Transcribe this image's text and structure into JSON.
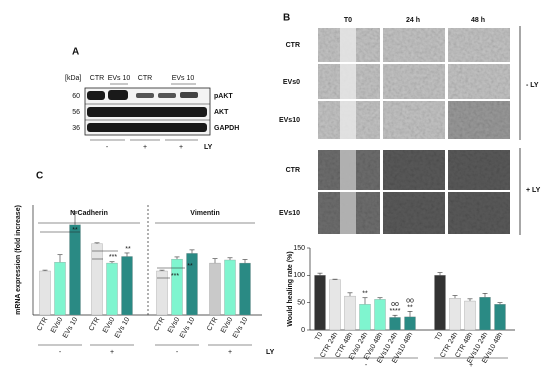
{
  "panel_a": {
    "label": "A",
    "kda_header": "[kDa]",
    "lanes": [
      "CTR",
      "EVs 10",
      "CTR",
      "EVs 10"
    ],
    "kda": [
      "60",
      "56",
      "36"
    ],
    "proteins": [
      "pAKT",
      "AKT",
      "GAPDH"
    ],
    "ly_signs": [
      "-",
      "+",
      "+"
    ],
    "ly_label": "LY"
  },
  "panel_b": {
    "label": "B",
    "columns": [
      "T0",
      "24 h",
      "48 h"
    ],
    "rows": [
      "CTR",
      "EVs0",
      "EVs10",
      "CTR",
      "EVs10"
    ],
    "groups": [
      "- LY",
      "+ LY"
    ]
  },
  "panel_c": {
    "label": "C"
  },
  "chart_data": [
    {
      "type": "bar",
      "ylabel": "mRNA expression (fold increase)",
      "groups": [
        "N-Cadherin",
        "Vimentin"
      ],
      "categories": [
        "CTR",
        "EVs0",
        "EVs 10",
        "CTR",
        "EVs0",
        "EVs 10",
        "CTR",
        "EVs0",
        "EVs 10",
        "CTR",
        "EVs0",
        "EVs 10"
      ],
      "values": [
        1.0,
        1.2,
        2.05,
        1.62,
        1.18,
        1.33,
        1.0,
        1.27,
        1.4,
        1.18,
        1.25,
        1.18
      ],
      "errors": [
        0.02,
        0.17,
        0.3,
        0.02,
        0.03,
        0.08,
        0.02,
        0.05,
        0.08,
        0.1,
        0.05,
        0.08
      ],
      "colors": [
        "#e4e4e4",
        "#7ff5cf",
        "#2a8a84",
        "#e4e4e4",
        "#7ff5cf",
        "#2a8a84",
        "#e4e4e4",
        "#7ff5cf",
        "#2a8a84",
        "#c9c9c9",
        "#7ff5cf",
        "#2a8a84"
      ],
      "ylim": [
        0,
        2.5
      ],
      "ly_signs": [
        "-",
        "+",
        "-",
        "+"
      ],
      "ly_label": "LY",
      "annotations": [
        "**",
        "**",
        "***",
        "**",
        "***"
      ]
    },
    {
      "type": "bar",
      "ylabel": "Would healing rate (%)",
      "categories": [
        "T0",
        "CTR 24h",
        "CTR 48h",
        "EVs0 24h",
        "EVs0 48h",
        "EVs10 24h",
        "EVs10 48h",
        "T0",
        "CTR 24h",
        "CTR 48h",
        "EVs10 24h",
        "EVs10 48h"
      ],
      "values": [
        100,
        92,
        62,
        47,
        56,
        23,
        24,
        100,
        58,
        53,
        60,
        47
      ],
      "errors": [
        4,
        1,
        6,
        12,
        3,
        4,
        10,
        5,
        5,
        4,
        7,
        3
      ],
      "colors": [
        "#333333",
        "#e6e6e6",
        "#e6e6e6",
        "#7ff5cf",
        "#7ff5cf",
        "#2a8a84",
        "#2a8a84",
        "#333333",
        "#e6e6e6",
        "#e6e6e6",
        "#2a8a84",
        "#2a8a84"
      ],
      "ylim": [
        0,
        150
      ],
      "yticks": [
        0,
        50,
        100,
        150
      ],
      "ly_signs": [
        "-",
        "+"
      ],
      "annotations": [
        "**",
        "oo",
        "****",
        "oo",
        "**"
      ]
    }
  ]
}
